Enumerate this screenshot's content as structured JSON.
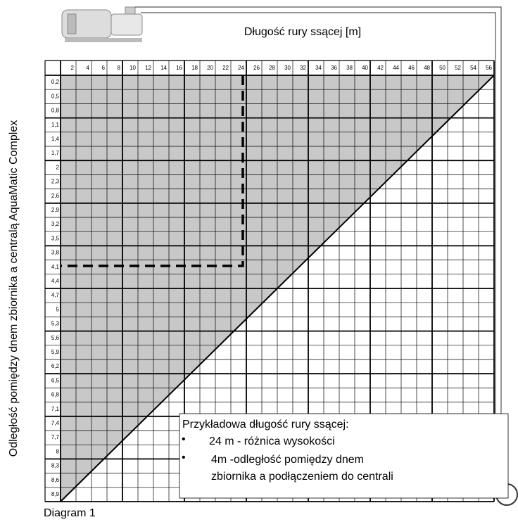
{
  "title": "Długość rury ssącej [m]",
  "y_axis_label": "Odległość pomiędzy dnem zbiornika a centralą AquaMatic  Complex",
  "columns": [
    "2",
    "4",
    "6",
    "8",
    "10",
    "12",
    "14",
    "16",
    "18",
    "20",
    "22",
    "24",
    "26",
    "28",
    "30",
    "32",
    "34",
    "36",
    "38",
    "40",
    "42",
    "44",
    "46",
    "48",
    "50",
    "52",
    "54",
    "56"
  ],
  "rows": [
    "0,2",
    "0,5",
    "0,8",
    "1,1",
    "1,4",
    "1,7",
    "2",
    "2,3",
    "2,6",
    "2,9",
    "3,2",
    "3,5",
    "3,8",
    "4,1",
    "4,4",
    "4,7",
    "5",
    "5,3",
    "5,6",
    "5,9",
    "6,2",
    "6,5",
    "6,8",
    "7,1",
    "7,4",
    "7,7",
    "8",
    "8,3",
    "8,6",
    "8,9"
  ],
  "example": {
    "heading": "Przykładowa długość rury ssącej:",
    "items": [
      "24 m - różnica wysokości",
      "4m -odległość pomiędzy dnem",
      "zbiornika a podłączeniem do centrali"
    ]
  },
  "caption": "Diagram 1"
}
